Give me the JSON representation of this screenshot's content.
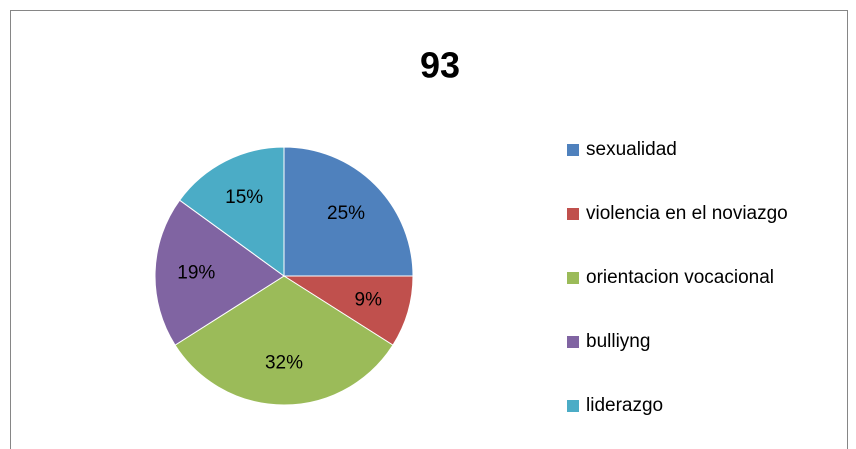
{
  "chart_data": {
    "type": "pie",
    "title": "93",
    "categories": [
      "sexualidad",
      "violencia en el noviazgo",
      "orientacion vocacional",
      "bulliyng",
      "liderazgo"
    ],
    "values": [
      25,
      9,
      32,
      19,
      15
    ],
    "value_labels": [
      "25%",
      "9%",
      "32%",
      "19%",
      "15%"
    ],
    "colors": [
      "#4f81bd",
      "#c0504d",
      "#9bbb59",
      "#8064a2",
      "#4bacc6"
    ],
    "legend": "right"
  }
}
